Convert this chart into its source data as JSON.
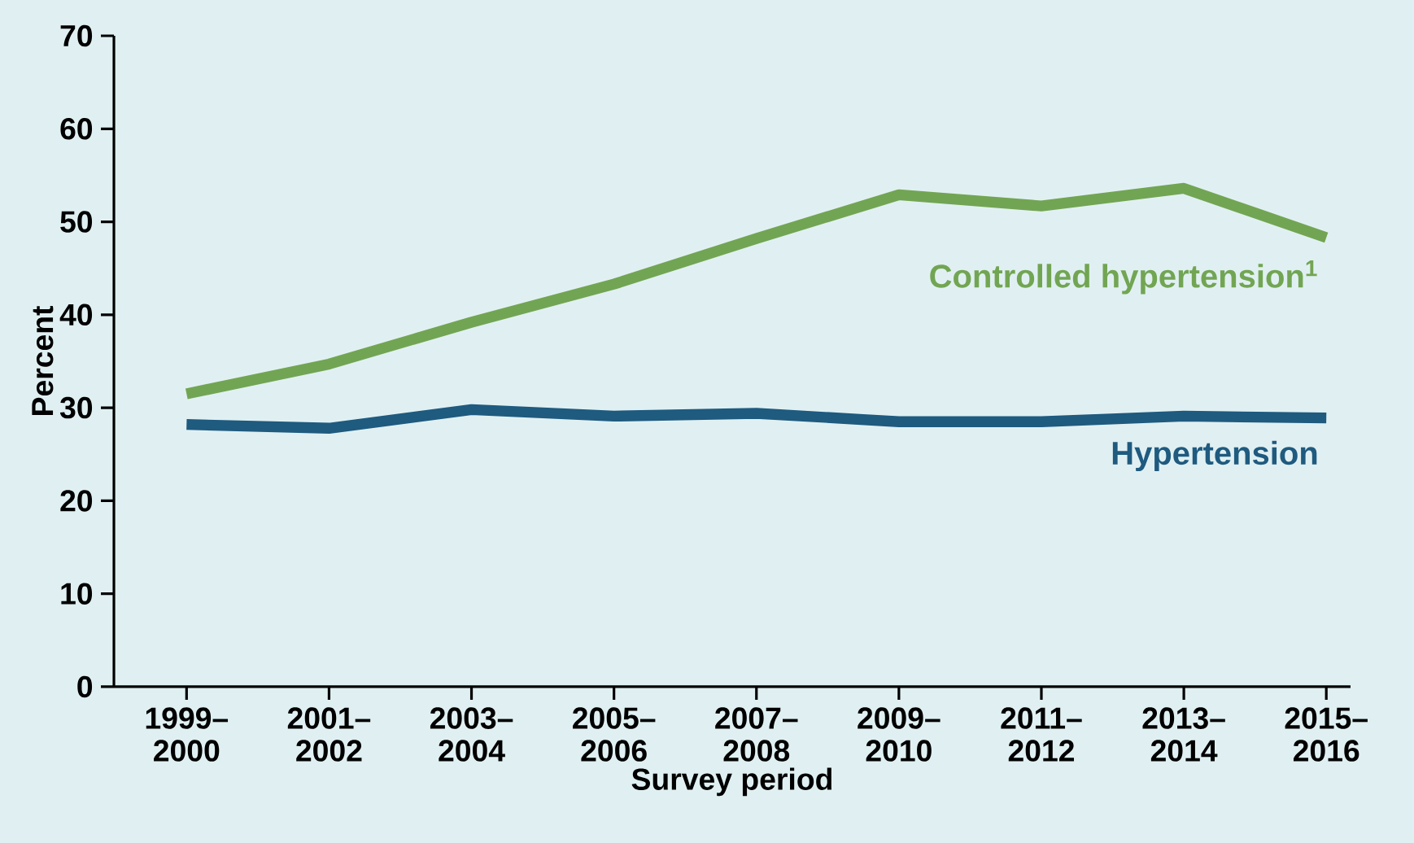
{
  "chart_data": {
    "type": "line",
    "xlabel": "Survey period",
    "ylabel": "Percent",
    "categories": [
      "1999– 2000",
      "2001– 2002",
      "2003– 2004",
      "2005– 2006",
      "2007– 2008",
      "2009– 2010",
      "2011– 2012",
      "2013– 2014",
      "2015– 2016"
    ],
    "series": [
      {
        "name": "Controlled hypertension$^{1}$",
        "color": "#72a553",
        "values": [
          31.5,
          34.7,
          39.2,
          43.3,
          48.2,
          52.9,
          51.7,
          53.6,
          48.3
        ]
      },
      {
        "name": "Hypertension",
        "color": "#1f5a7f",
        "values": [
          28.2,
          27.8,
          29.8,
          29.1,
          29.4,
          28.5,
          28.5,
          29.1,
          28.9
        ]
      }
    ],
    "ylim": [
      0,
      70
    ],
    "yticks": [
      0,
      10,
      20,
      30,
      40,
      50,
      60,
      70
    ],
    "grid": false,
    "marker": "none",
    "line_style": "solid"
  }
}
